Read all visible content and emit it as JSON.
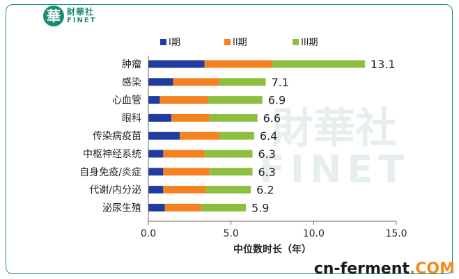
{
  "logo": {
    "glyph": "華",
    "cn": "財華社",
    "en": "FINET"
  },
  "watermark": {
    "cn": "財華社",
    "en": "FINET"
  },
  "footer": {
    "part1": "cn-ferment",
    "part2": ".COM"
  },
  "chart_data": {
    "type": "bar",
    "orientation": "horizontal",
    "stacked": true,
    "title": "",
    "xlabel": "中位数时长（年）",
    "ylabel": "",
    "xlim": [
      0,
      15
    ],
    "xticks": [
      "0.0",
      "5.0",
      "10.0",
      "15.0"
    ],
    "grid": false,
    "legend_position": "top",
    "categories": [
      "肿瘤",
      "感染",
      "心血管",
      "眼科",
      "传染病疫苗",
      "中枢神经系统",
      "自身免疫/炎症",
      "代谢/内分泌",
      "泌尿生殖"
    ],
    "series": [
      {
        "name": "I期",
        "color": "#1f3c9e",
        "values": [
          3.4,
          1.5,
          0.7,
          1.4,
          1.9,
          0.9,
          0.9,
          0.9,
          1.0
        ]
      },
      {
        "name": "II期",
        "color": "#f58220",
        "values": [
          4.1,
          2.8,
          2.9,
          2.3,
          2.4,
          2.5,
          2.8,
          2.6,
          2.2
        ]
      },
      {
        "name": "III期",
        "color": "#8cbf3f",
        "values": [
          5.6,
          2.8,
          3.3,
          2.9,
          2.1,
          2.9,
          2.6,
          2.7,
          2.7
        ]
      }
    ],
    "totals": [
      "13.1",
      "7.1",
      "6.9",
      "6.6",
      "6.4",
      "6.3",
      "6.3",
      "6.2",
      "5.9"
    ]
  }
}
